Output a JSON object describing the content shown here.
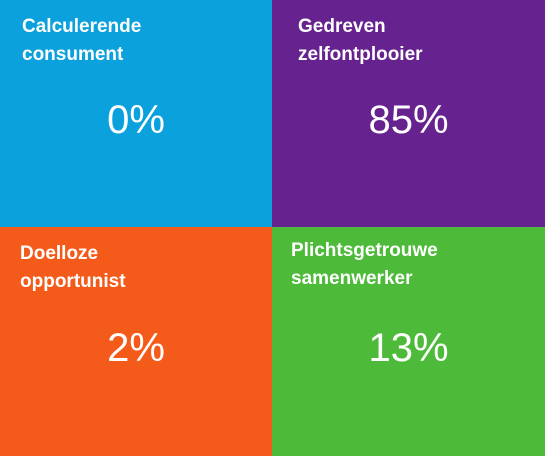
{
  "chart_data": {
    "type": "table",
    "title": "",
    "cells": [
      {
        "label": "Calculerende\nconsument",
        "value": 0,
        "display": "0%",
        "color": "#0aa1dc"
      },
      {
        "label": "Gedreven\nzelfontplooier",
        "value": 85,
        "display": "85%",
        "color": "#66228f"
      },
      {
        "label": "Doelloze\nopportunist",
        "value": 2,
        "display": "2%",
        "color": "#f45b1b"
      },
      {
        "label": "Plichtsgetrouwe\nsamenwerker",
        "value": 13,
        "display": "13%",
        "color": "#4dbb39"
      }
    ],
    "unit": "%"
  }
}
